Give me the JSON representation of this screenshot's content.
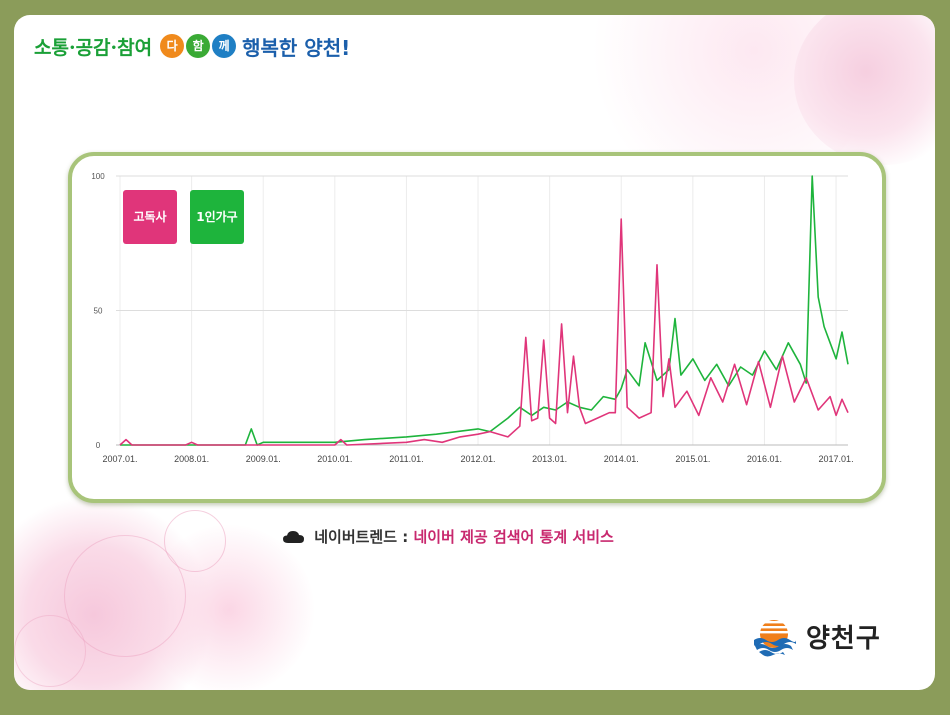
{
  "header": {
    "slogan_1": "소통·공감·참여",
    "circle_1": "다",
    "circle_2": "함",
    "circle_3": "께",
    "slogan_2": "행복한 양천!"
  },
  "legend": {
    "item_1": "고독사",
    "item_2": "1인가구"
  },
  "caption": {
    "source": "네이버트렌드 :",
    "description": "네이버 제공 검색어 통계 서비스"
  },
  "footer": {
    "org_name": "양천구"
  },
  "colors": {
    "pink": "#e0357a",
    "green": "#1eb43c",
    "frame": "#a8c47a",
    "background": "#8b9c5a"
  },
  "chart_data": {
    "type": "line",
    "x_ticks": [
      "2007.01.",
      "2008.01.",
      "2009.01.",
      "2010.01.",
      "2011.01.",
      "2012.01.",
      "2013.01.",
      "2014.01.",
      "2015.01.",
      "2016.01.",
      "2017.01."
    ],
    "y_ticks": [
      0,
      50,
      100
    ],
    "ylim": [
      0,
      100
    ],
    "xlim": [
      "2007.01.",
      "2017.03."
    ],
    "grid": true,
    "legend_position": "top-left",
    "series": [
      {
        "name": "고독사",
        "color": "#e0357a",
        "points": [
          [
            "2007.01.",
            0
          ],
          [
            "2007.02.",
            2
          ],
          [
            "2007.03.",
            0
          ],
          [
            "2007.12.",
            0
          ],
          [
            "2008.01.",
            1
          ],
          [
            "2008.02.",
            0
          ],
          [
            "2009.01.",
            0
          ],
          [
            "2010.01.",
            0
          ],
          [
            "2010.02.",
            2
          ],
          [
            "2010.03.",
            0
          ],
          [
            "2011.01.",
            1
          ],
          [
            "2011.04.",
            2
          ],
          [
            "2011.07.",
            1
          ],
          [
            "2011.10.",
            3
          ],
          [
            "2012.01.",
            4
          ],
          [
            "2012.03.",
            5
          ],
          [
            "2012.06.",
            3
          ],
          [
            "2012.08.",
            7
          ],
          [
            "2012.09.",
            40
          ],
          [
            "2012.10.",
            9
          ],
          [
            "2012.11.",
            10
          ],
          [
            "2012.12.",
            39
          ],
          [
            "2013.01.",
            10
          ],
          [
            "2013.02.",
            8
          ],
          [
            "2013.03.",
            45
          ],
          [
            "2013.04.",
            12
          ],
          [
            "2013.05.",
            33
          ],
          [
            "2013.06.",
            14
          ],
          [
            "2013.07.",
            8
          ],
          [
            "2013.09.",
            10
          ],
          [
            "2013.11.",
            12
          ],
          [
            "2013.12.",
            12
          ],
          [
            "2014.01.",
            84
          ],
          [
            "2014.02.",
            14
          ],
          [
            "2014.04.",
            10
          ],
          [
            "2014.06.",
            12
          ],
          [
            "2014.07.",
            67
          ],
          [
            "2014.08.",
            18
          ],
          [
            "2014.09.",
            32
          ],
          [
            "2014.10.",
            14
          ],
          [
            "2014.12.",
            20
          ],
          [
            "2015.02.",
            11
          ],
          [
            "2015.04.",
            25
          ],
          [
            "2015.06.",
            16
          ],
          [
            "2015.08.",
            30
          ],
          [
            "2015.10.",
            15
          ],
          [
            "2015.12.",
            31
          ],
          [
            "2016.02.",
            14
          ],
          [
            "2016.04.",
            33
          ],
          [
            "2016.06.",
            16
          ],
          [
            "2016.08.",
            25
          ],
          [
            "2016.10.",
            13
          ],
          [
            "2016.12.",
            18
          ],
          [
            "2017.01.",
            11
          ],
          [
            "2017.02.",
            17
          ],
          [
            "2017.03.",
            12
          ]
        ]
      },
      {
        "name": "1인가구",
        "color": "#1eb43c",
        "points": [
          [
            "2007.01.",
            0
          ],
          [
            "2008.01.",
            0
          ],
          [
            "2008.10.",
            0
          ],
          [
            "2008.11.",
            6
          ],
          [
            "2008.12.",
            0
          ],
          [
            "2009.01.",
            1
          ],
          [
            "2009.06.",
            1
          ],
          [
            "2010.01.",
            1
          ],
          [
            "2010.06.",
            2
          ],
          [
            "2011.01.",
            3
          ],
          [
            "2011.06.",
            4
          ],
          [
            "2012.01.",
            6
          ],
          [
            "2012.03.",
            5
          ],
          [
            "2012.06.",
            10
          ],
          [
            "2012.08.",
            14
          ],
          [
            "2012.10.",
            11
          ],
          [
            "2012.12.",
            14
          ],
          [
            "2013.02.",
            13
          ],
          [
            "2013.04.",
            16
          ],
          [
            "2013.06.",
            14
          ],
          [
            "2013.08.",
            13
          ],
          [
            "2013.10.",
            18
          ],
          [
            "2013.12.",
            17
          ],
          [
            "2014.01.",
            21
          ],
          [
            "2014.02.",
            28
          ],
          [
            "2014.04.",
            22
          ],
          [
            "2014.05.",
            38
          ],
          [
            "2014.07.",
            24
          ],
          [
            "2014.09.",
            28
          ],
          [
            "2014.10.",
            47
          ],
          [
            "2014.11.",
            26
          ],
          [
            "2015.01.",
            32
          ],
          [
            "2015.03.",
            24
          ],
          [
            "2015.05.",
            30
          ],
          [
            "2015.07.",
            22
          ],
          [
            "2015.09.",
            29
          ],
          [
            "2015.11.",
            26
          ],
          [
            "2016.01.",
            35
          ],
          [
            "2016.03.",
            28
          ],
          [
            "2016.05.",
            38
          ],
          [
            "2016.07.",
            30
          ],
          [
            "2016.08.",
            23
          ],
          [
            "2016.09.",
            100
          ],
          [
            "2016.10.",
            55
          ],
          [
            "2016.11.",
            44
          ],
          [
            "2016.12.",
            38
          ],
          [
            "2017.01.",
            32
          ],
          [
            "2017.02.",
            42
          ],
          [
            "2017.03.",
            30
          ]
        ]
      }
    ]
  }
}
